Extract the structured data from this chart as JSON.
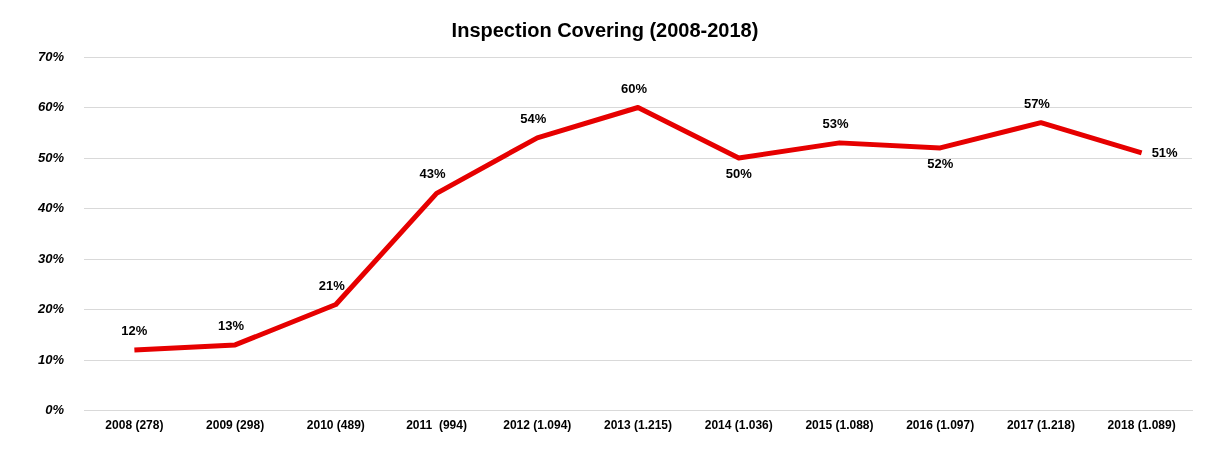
{
  "chart_data": {
    "type": "line",
    "title": "Inspection Covering (2008-2018)",
    "categories": [
      "2008 (278)",
      "2009 (298)",
      "2010 (489)",
      "2011  (994)",
      "2012 (1.094)",
      "2013 (1.215)",
      "2014 (1.036)",
      "2015 (1.088)",
      "2016 (1.097)",
      "2017 (1.218)",
      "2018 (1.089)"
    ],
    "series": [
      {
        "color": "#e60000",
        "values": [
          12,
          13,
          21,
          43,
          54,
          60,
          50,
          53,
          52,
          57,
          51
        ],
        "value_labels": [
          "12%",
          "13%",
          "21%",
          "43%",
          "54%",
          "60%",
          "50%",
          "53%",
          "52%",
          "57%",
          "51%"
        ]
      }
    ],
    "ylim": [
      0,
      70
    ],
    "yticks": [
      {
        "value": 0,
        "label": "0%"
      },
      {
        "value": 10,
        "label": "10%"
      },
      {
        "value": 20,
        "label": "20%"
      },
      {
        "value": 30,
        "label": "30%"
      },
      {
        "value": 40,
        "label": "40%"
      },
      {
        "value": 50,
        "label": "50%"
      },
      {
        "value": 60,
        "label": "60%"
      },
      {
        "value": 70,
        "label": "70%"
      }
    ],
    "grid": "y",
    "legend": false,
    "marker": "none",
    "line_style": "solid"
  }
}
